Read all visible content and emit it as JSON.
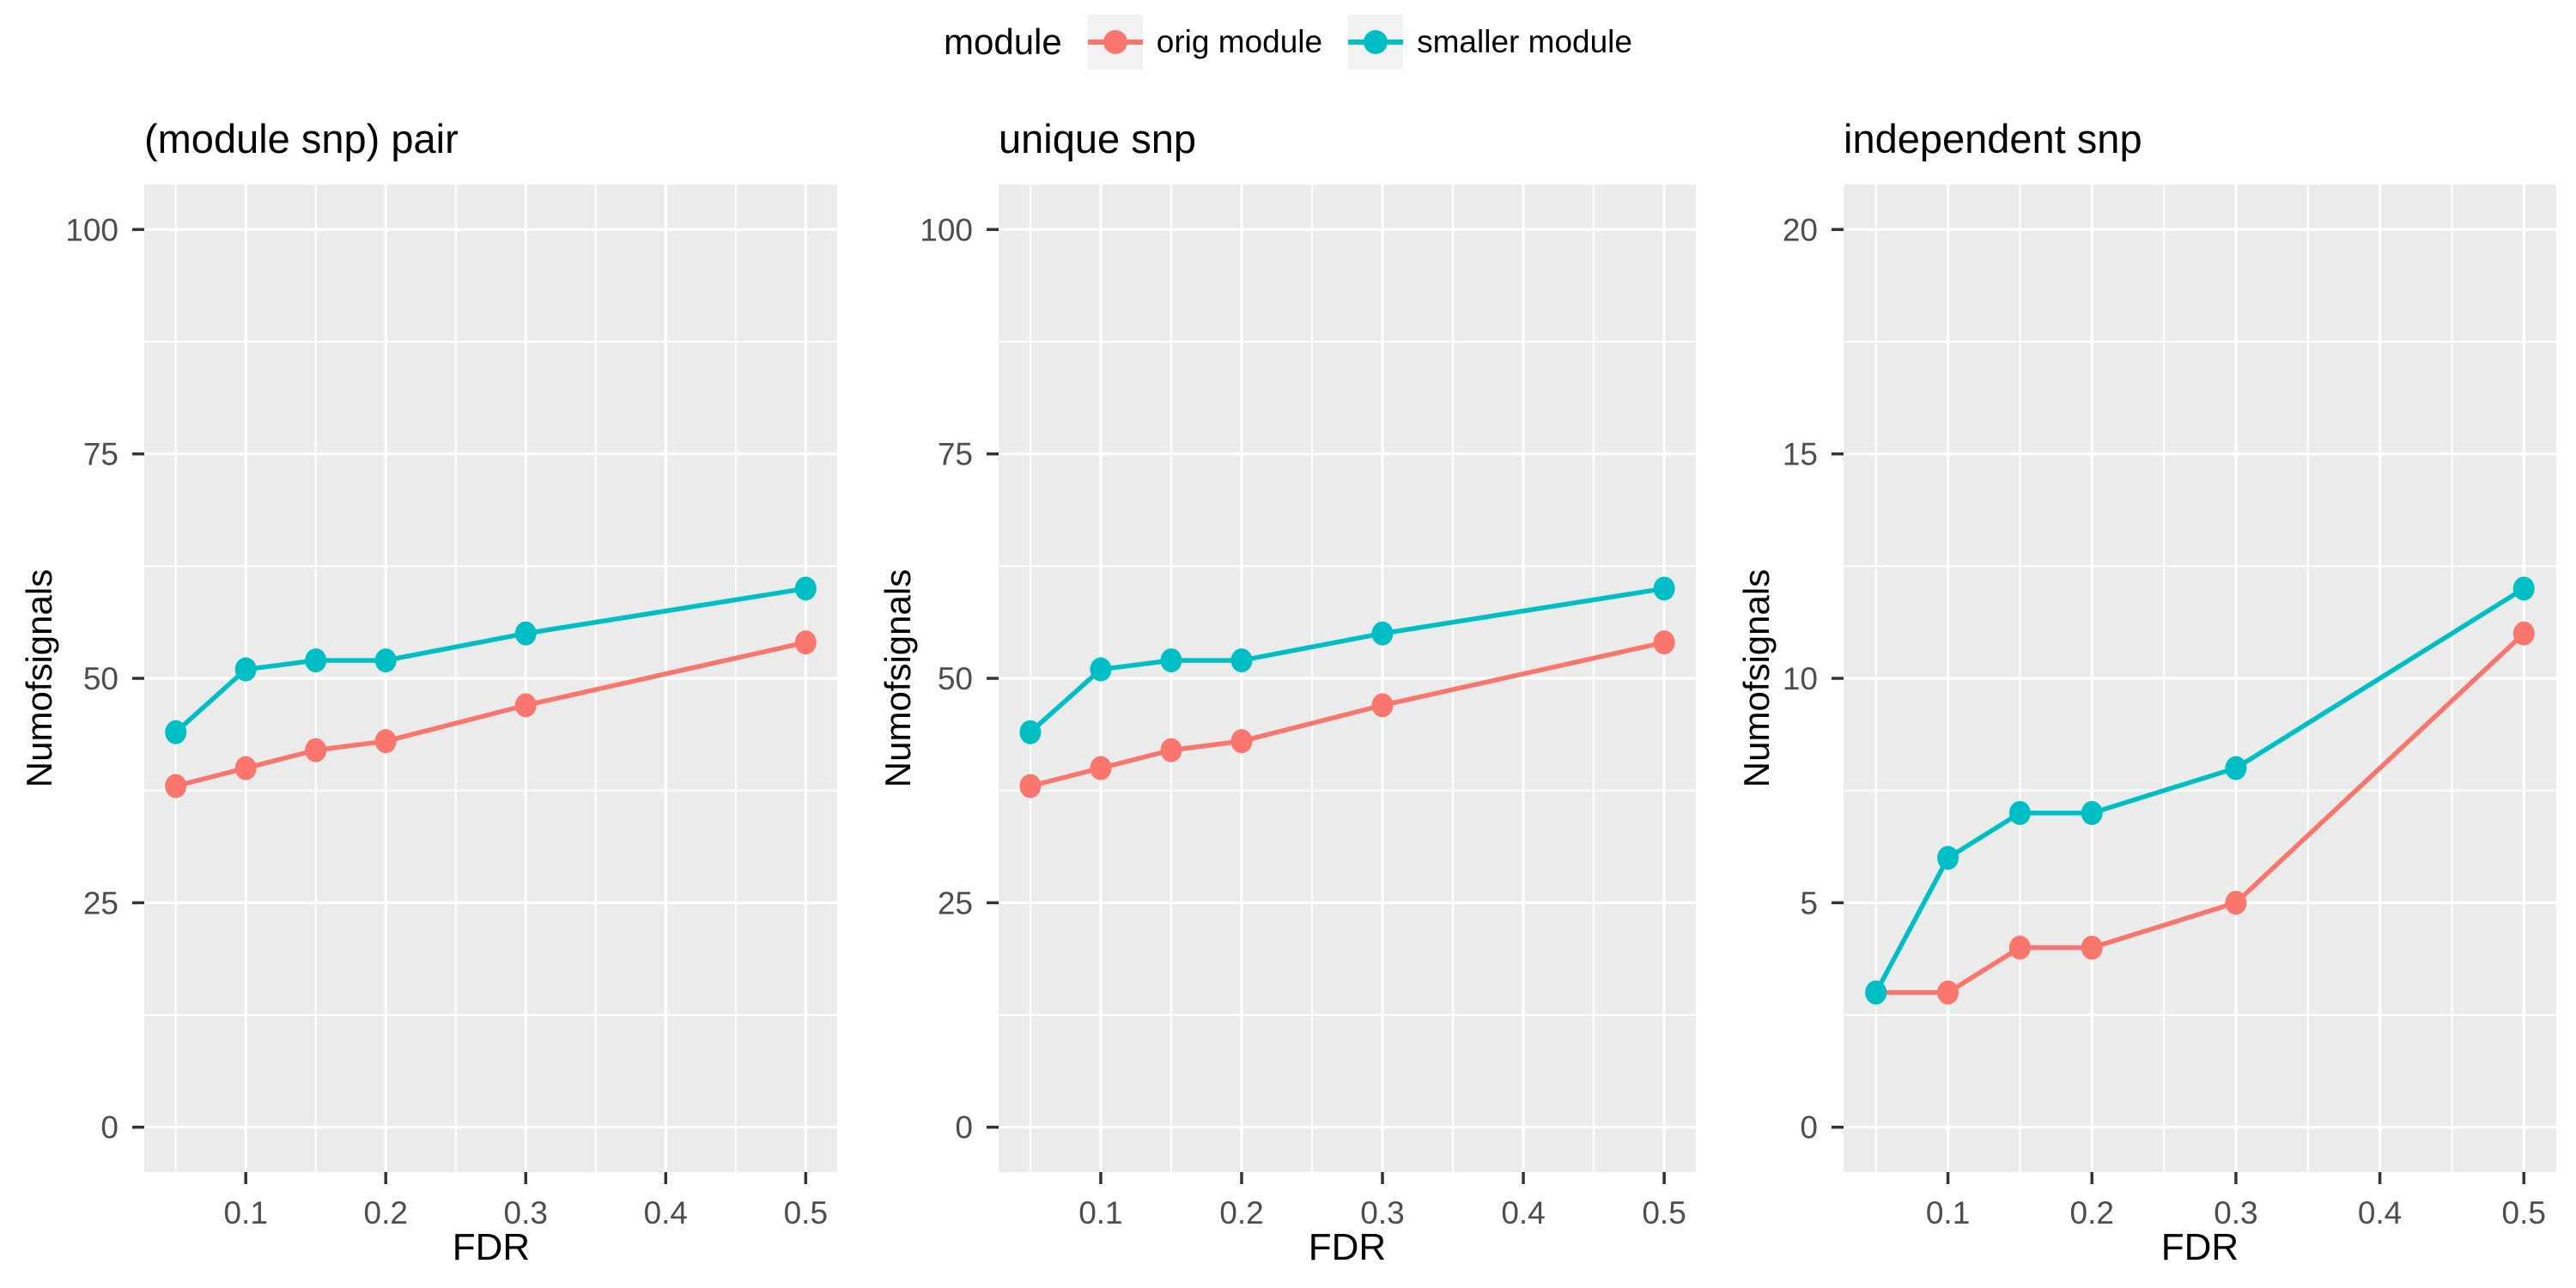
{
  "figure": {
    "background": "#FFFFFF",
    "panel_background": "#EBEBEB",
    "gridline_color": "#FFFFFF",
    "tick_mark_color": "#333333",
    "tick_label_color": "#4D4D4D",
    "text_color": "#000000"
  },
  "legend": {
    "title": "module",
    "key_background": "#F2F2F2",
    "items": [
      {
        "label": "orig module",
        "color": "#F8766D"
      },
      {
        "label": "smaller module",
        "color": "#00BFC4"
      }
    ]
  },
  "chart_data": [
    {
      "type": "line",
      "title": "(module snp) pair",
      "xlabel": "FDR",
      "ylabel": "Numofsignals",
      "x": [
        0.05,
        0.1,
        0.15,
        0.2,
        0.3,
        0.5
      ],
      "xticks": [
        0.1,
        0.2,
        0.3,
        0.4,
        0.5
      ],
      "xtick_labels": [
        "0.1",
        "0.2",
        "0.3",
        "0.4",
        "0.5"
      ],
      "ylim": [
        0,
        100
      ],
      "yticks": [
        0,
        25,
        50,
        75,
        100
      ],
      "grid": true,
      "legend_position": "top",
      "series": [
        {
          "name": "orig module",
          "color": "#F8766D",
          "values": [
            38,
            40,
            42,
            43,
            47,
            54
          ]
        },
        {
          "name": "smaller module",
          "color": "#00BFC4",
          "values": [
            44,
            51,
            52,
            52,
            55,
            60
          ]
        }
      ]
    },
    {
      "type": "line",
      "title": "unique snp",
      "xlabel": "FDR",
      "ylabel": "Numofsignals",
      "x": [
        0.05,
        0.1,
        0.15,
        0.2,
        0.3,
        0.5
      ],
      "xticks": [
        0.1,
        0.2,
        0.3,
        0.4,
        0.5
      ],
      "xtick_labels": [
        "0.1",
        "0.2",
        "0.3",
        "0.4",
        "0.5"
      ],
      "ylim": [
        0,
        100
      ],
      "yticks": [
        0,
        25,
        50,
        75,
        100
      ],
      "grid": true,
      "legend_position": "top",
      "series": [
        {
          "name": "orig module",
          "color": "#F8766D",
          "values": [
            38,
            40,
            42,
            43,
            47,
            54
          ]
        },
        {
          "name": "smaller module",
          "color": "#00BFC4",
          "values": [
            44,
            51,
            52,
            52,
            55,
            60
          ]
        }
      ]
    },
    {
      "type": "line",
      "title": "independent snp",
      "xlabel": "FDR",
      "ylabel": "Numofsignals",
      "x": [
        0.05,
        0.1,
        0.15,
        0.2,
        0.3,
        0.5
      ],
      "xticks": [
        0.1,
        0.2,
        0.3,
        0.4,
        0.5
      ],
      "xtick_labels": [
        "0.1",
        "0.2",
        "0.3",
        "0.4",
        "0.5"
      ],
      "ylim": [
        0,
        20
      ],
      "yticks": [
        0,
        5,
        10,
        15,
        20
      ],
      "grid": true,
      "legend_position": "top",
      "series": [
        {
          "name": "orig module",
          "color": "#F8766D",
          "values": [
            3,
            3,
            4,
            4,
            5,
            11
          ]
        },
        {
          "name": "smaller module",
          "color": "#00BFC4",
          "values": [
            3,
            6,
            7,
            7,
            8,
            12
          ]
        }
      ]
    }
  ]
}
